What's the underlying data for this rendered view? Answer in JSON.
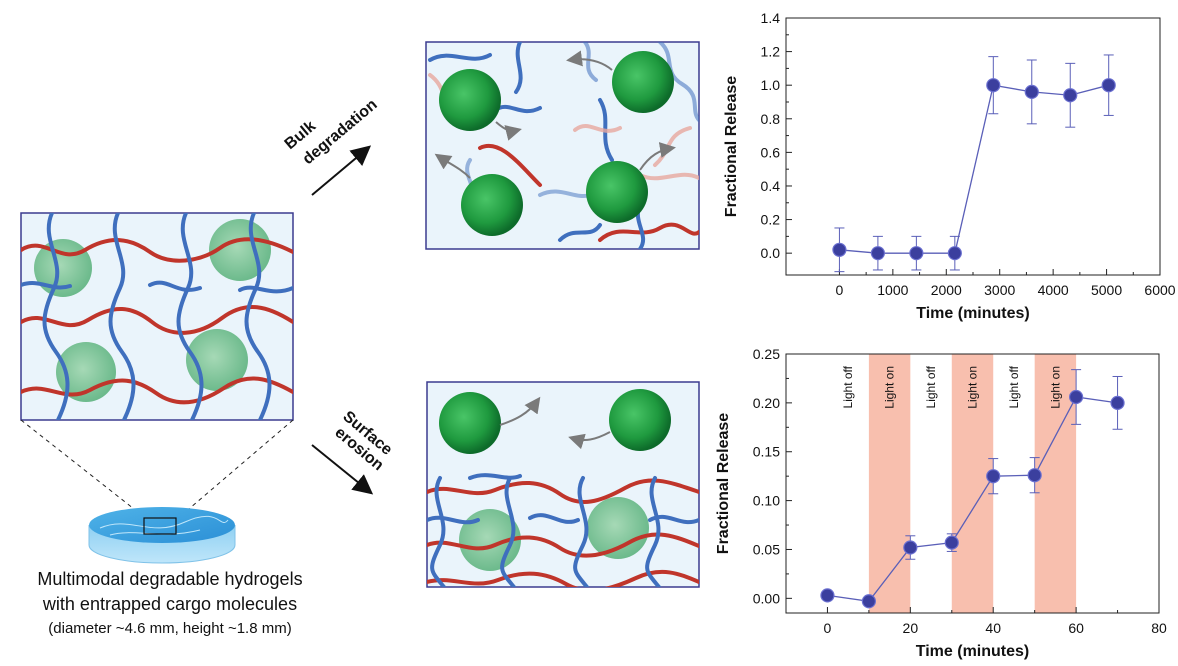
{
  "labels": {
    "bulk": [
      "Bulk",
      "degradation"
    ],
    "surface": [
      "Surface",
      "erosion"
    ],
    "caption_line1": "Multimodal degradable hydrogels",
    "caption_line2": "with entrapped cargo molecules",
    "caption_line3": "(diameter ~4.6 mm, height ~1.8 mm)"
  },
  "colors": {
    "network_red": "#c0352b",
    "network_blue": "#3f6fbe",
    "gel_bg": "#eaf4fb",
    "frame": "#3b3b8f",
    "marker": "#3b3f9e",
    "marker_light": "#6a6fd0",
    "light_band": "#f7b4a0",
    "line": "#5a5fb8"
  },
  "chart_data": [
    {
      "type": "scatter",
      "title": "",
      "xlabel": "Time (minutes)",
      "ylabel": "Fractional Release",
      "xlim": [
        -1000,
        6000
      ],
      "ylim": [
        -0.13,
        1.4
      ],
      "xticks": [
        0,
        1000,
        2000,
        3000,
        4000,
        5000,
        6000
      ],
      "yticks": [
        0.0,
        0.2,
        0.4,
        0.6,
        0.8,
        1.0,
        1.2,
        1.4
      ],
      "ytick_labels": [
        "0.0",
        "0.2",
        "0.4",
        "0.6",
        "0.8",
        "1.0",
        "1.2",
        "1.4"
      ],
      "points": [
        {
          "x": 0,
          "y": 0.02,
          "err": 0.13
        },
        {
          "x": 720,
          "y": 0.0,
          "err": 0.1
        },
        {
          "x": 1440,
          "y": 0.0,
          "err": 0.1
        },
        {
          "x": 2160,
          "y": 0.0,
          "err": 0.1
        },
        {
          "x": 2880,
          "y": 1.0,
          "err": 0.17
        },
        {
          "x": 3600,
          "y": 0.96,
          "err": 0.19
        },
        {
          "x": 4320,
          "y": 0.94,
          "err": 0.19
        },
        {
          "x": 5040,
          "y": 1.0,
          "err": 0.18
        }
      ]
    },
    {
      "type": "scatter",
      "title": "",
      "xlabel": "Time (minutes)",
      "ylabel": "Fractional Release",
      "xlim": [
        -10,
        80
      ],
      "ylim": [
        -0.015,
        0.25
      ],
      "xticks": [
        0,
        20,
        40,
        60,
        80
      ],
      "yticks": [
        0.0,
        0.05,
        0.1,
        0.15,
        0.2,
        0.25
      ],
      "ytick_labels": [
        "0.00",
        "0.05",
        "0.10",
        "0.15",
        "0.20",
        "0.25"
      ],
      "bands": [
        {
          "from": 10,
          "to": 20,
          "label": "Light on"
        },
        {
          "from": 30,
          "to": 40,
          "label": "Light on"
        },
        {
          "from": 50,
          "to": 60,
          "label": "Light on"
        }
      ],
      "off_labels": [
        {
          "x": 5,
          "label": "Light off"
        },
        {
          "x": 25,
          "label": "Light off"
        },
        {
          "x": 45,
          "label": "Light off"
        }
      ],
      "points": [
        {
          "x": 0,
          "y": 0.003,
          "err": 0
        },
        {
          "x": 10,
          "y": -0.003,
          "err": 0
        },
        {
          "x": 20,
          "y": 0.052,
          "err": 0.012
        },
        {
          "x": 30,
          "y": 0.057,
          "err": 0.009
        },
        {
          "x": 40,
          "y": 0.125,
          "err": 0.018
        },
        {
          "x": 50,
          "y": 0.126,
          "err": 0.018
        },
        {
          "x": 60,
          "y": 0.206,
          "err": 0.028
        },
        {
          "x": 70,
          "y": 0.2,
          "err": 0.027
        }
      ]
    }
  ]
}
